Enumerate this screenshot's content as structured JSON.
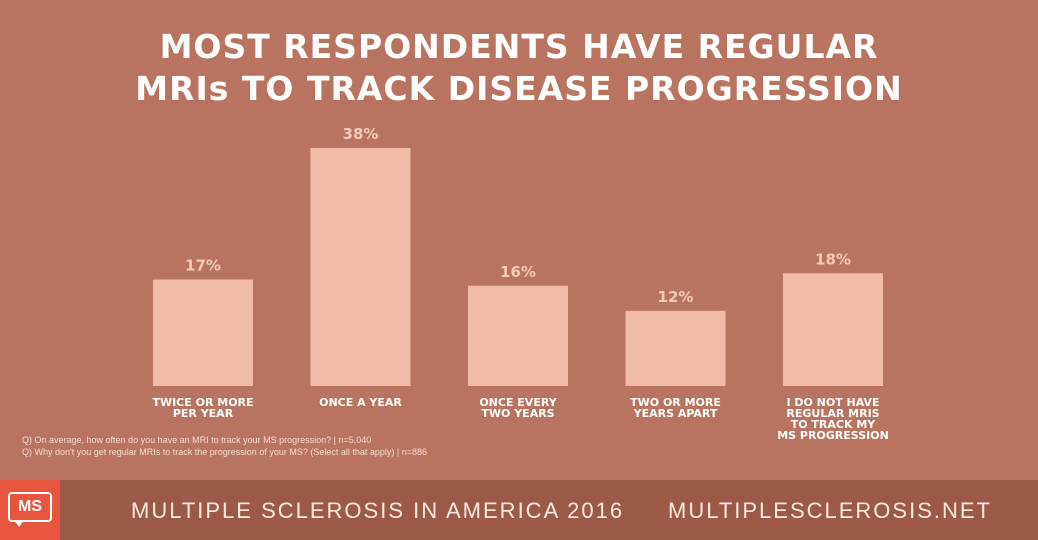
{
  "header": {
    "title_line1": "MOST RESPONDENTS HAVE REGULAR",
    "title_line2": "MRIs TO TRACK DISEASE PROGRESSION"
  },
  "chart_data": {
    "type": "bar",
    "title": "MOST RESPONDENTS HAVE REGULAR MRIs TO TRACK DISEASE PROGRESSION",
    "categories": [
      [
        "TWICE OR MORE",
        "PER YEAR"
      ],
      [
        "ONCE A YEAR"
      ],
      [
        "ONCE EVERY",
        "TWO YEARS"
      ],
      [
        "TWO OR MORE",
        "YEARS APART"
      ],
      [
        "I DO NOT HAVE",
        "REGULAR MRIS",
        "TO TRACK MY",
        "MS PROGRESSION"
      ]
    ],
    "values": [
      17,
      38,
      16,
      12,
      18
    ],
    "value_labels": [
      "17%",
      "38%",
      "16%",
      "12%",
      "18%"
    ],
    "unit": "%",
    "xlabel": "",
    "ylabel": "",
    "ylim": [
      0,
      38
    ],
    "grid": false,
    "legend": "none",
    "colors": {
      "bar": "#f0bca8",
      "value_label": "#f4cbb9",
      "category_label": "#ffffff"
    }
  },
  "notes": [
    "Q) On average, how often do you have an MRI to track your MS progression? | n=5,040",
    "Q) Why don't you get regular MRIs to track the progression of your MS? (Select all that apply) | n=886"
  ],
  "footer": {
    "logo_text": "MS",
    "left_text": "MULTIPLE SCLEROSIS IN AMERICA 2016",
    "right_text": "MULTIPLESCLEROSIS.NET"
  },
  "colors": {
    "background": "#b97461",
    "footer": "#9d5948",
    "logo": "#e8553e"
  }
}
